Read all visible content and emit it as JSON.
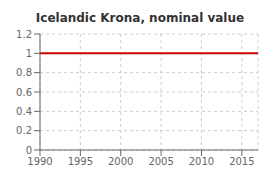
{
  "chart_data": {
    "type": "line",
    "title": "Icelandic Krona, nominal value",
    "x": [
      1990,
      2017
    ],
    "values": [
      1.0,
      1.0
    ],
    "color": "#cc0000",
    "xlim": [
      1990,
      2017
    ],
    "xticks": [
      1990,
      1995,
      2000,
      2005,
      2010,
      2015
    ],
    "ylim": [
      0,
      1.2
    ],
    "yticks": [
      0,
      0.2,
      0.4,
      0.6,
      0.8,
      1,
      1.2
    ],
    "grid": true
  }
}
